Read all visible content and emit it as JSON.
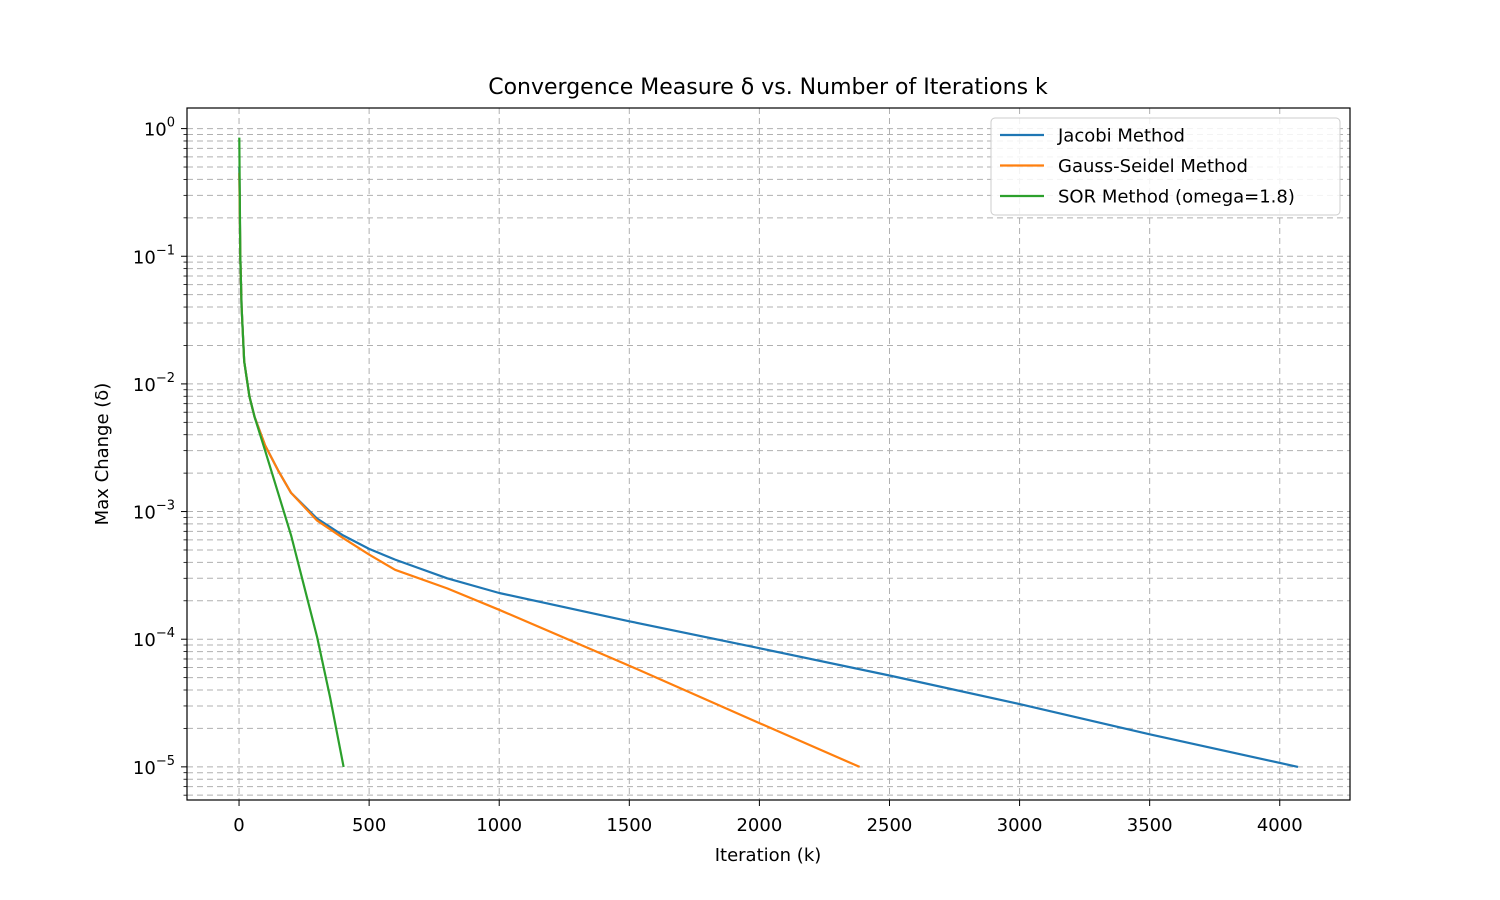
{
  "chart_data": {
    "type": "line",
    "title": "Convergence Measure δ vs. Number of Iterations k",
    "xlabel": "Iteration (k)",
    "ylabel": "Max Change (δ)",
    "xlim": [
      -200,
      4270
    ],
    "ylim": [
      5.5e-06,
      1.45
    ],
    "yscale": "log",
    "grid": true,
    "legend_position": "top-right",
    "x_ticks": [
      0,
      500,
      1000,
      1500,
      2000,
      2500,
      3000,
      3500,
      4000
    ],
    "y_ticks": [
      {
        "value": 1,
        "base": "10",
        "exp": "0"
      },
      {
        "value": 0.1,
        "base": "10",
        "exp": "−1"
      },
      {
        "value": 0.01,
        "base": "10",
        "exp": "−2"
      },
      {
        "value": 0.001,
        "base": "10",
        "exp": "−3"
      },
      {
        "value": 0.0001,
        "base": "10",
        "exp": "−4"
      },
      {
        "value": 1e-05,
        "base": "10",
        "exp": "−5"
      }
    ],
    "series": [
      {
        "name": "Jacobi Method",
        "color": "#1f77b4",
        "points": [
          [
            1,
            0.5
          ],
          [
            5,
            0.1
          ],
          [
            10,
            0.04
          ],
          [
            20,
            0.015
          ],
          [
            40,
            0.008
          ],
          [
            60,
            0.0055
          ],
          [
            100,
            0.0033
          ],
          [
            150,
            0.0021
          ],
          [
            200,
            0.0014
          ],
          [
            300,
            0.00088
          ],
          [
            400,
            0.00065
          ],
          [
            500,
            0.00051
          ],
          [
            600,
            0.00042
          ],
          [
            800,
            0.0003
          ],
          [
            1000,
            0.00023
          ],
          [
            1500,
            0.000138
          ],
          [
            2000,
            8.5e-05
          ],
          [
            2500,
            5.2e-05
          ],
          [
            3000,
            3.1e-05
          ],
          [
            3500,
            1.8e-05
          ],
          [
            4070,
            1e-05
          ]
        ]
      },
      {
        "name": "Gauss-Seidel Method",
        "color": "#ff7f0e",
        "points": [
          [
            1,
            0.45
          ],
          [
            5,
            0.1
          ],
          [
            10,
            0.04
          ],
          [
            20,
            0.015
          ],
          [
            40,
            0.008
          ],
          [
            60,
            0.0055
          ],
          [
            100,
            0.0033
          ],
          [
            150,
            0.0021
          ],
          [
            200,
            0.0014
          ],
          [
            300,
            0.00085
          ],
          [
            400,
            0.00062
          ],
          [
            500,
            0.00046
          ],
          [
            600,
            0.00035
          ],
          [
            800,
            0.00025
          ],
          [
            1000,
            0.00017
          ],
          [
            1500,
            6.2e-05
          ],
          [
            2000,
            2.2e-05
          ],
          [
            2385,
            1e-05
          ]
        ]
      },
      {
        "name": "SOR Method (omega=1.8)",
        "color": "#2ca02c",
        "points": [
          [
            1,
            0.85
          ],
          [
            5,
            0.1
          ],
          [
            10,
            0.04
          ],
          [
            20,
            0.015
          ],
          [
            40,
            0.008
          ],
          [
            60,
            0.0055
          ],
          [
            100,
            0.003
          ],
          [
            150,
            0.0014
          ],
          [
            200,
            0.00065
          ],
          [
            250,
            0.00026
          ],
          [
            300,
            0.000104
          ],
          [
            350,
            3.5e-05
          ],
          [
            402,
            1e-05
          ]
        ]
      }
    ]
  }
}
